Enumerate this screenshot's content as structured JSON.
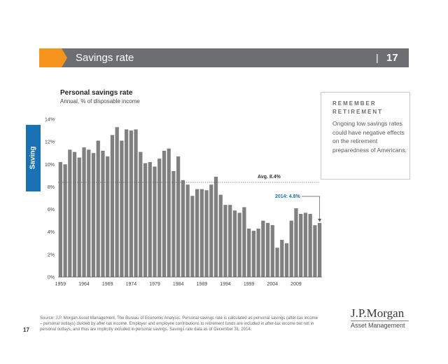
{
  "header": {
    "title": "Savings rate",
    "separator": "|",
    "page_number": "17",
    "bar_color": "#6d6e71",
    "accent_color": "#f7941d"
  },
  "side_tab": {
    "label": "Saving",
    "color": "#1a72b5"
  },
  "chart_data": {
    "type": "bar",
    "title": "Personal savings rate",
    "subtitle": "Annual, % of disposable income",
    "x": [
      1959,
      1960,
      1961,
      1962,
      1963,
      1964,
      1965,
      1966,
      1967,
      1968,
      1969,
      1970,
      1971,
      1972,
      1973,
      1974,
      1975,
      1976,
      1977,
      1978,
      1979,
      1980,
      1981,
      1982,
      1983,
      1984,
      1985,
      1986,
      1987,
      1988,
      1989,
      1990,
      1991,
      1992,
      1993,
      1994,
      1995,
      1996,
      1997,
      1998,
      1999,
      2000,
      2001,
      2002,
      2003,
      2004,
      2005,
      2006,
      2007,
      2008,
      2009,
      2010,
      2011,
      2012,
      2013,
      2014
    ],
    "values": [
      10.2,
      10.0,
      11.3,
      11.1,
      10.6,
      11.5,
      11.3,
      11.0,
      12.1,
      11.2,
      10.7,
      12.6,
      13.3,
      12.1,
      13.1,
      13.0,
      13.1,
      11.1,
      10.1,
      10.2,
      9.8,
      10.5,
      11.2,
      11.4,
      9.4,
      10.7,
      8.6,
      8.2,
      7.2,
      7.8,
      7.8,
      7.7,
      8.2,
      8.9,
      7.3,
      6.4,
      6.4,
      5.9,
      5.7,
      6.2,
      4.3,
      4.1,
      4.3,
      5.0,
      4.8,
      4.6,
      2.6,
      3.3,
      3.0,
      5.0,
      6.1,
      5.6,
      5.7,
      5.6,
      4.6,
      4.8
    ],
    "colors": {
      "bar": "#808080",
      "avg_line": "#666666",
      "annotation": "#1a72b5"
    },
    "ylim": [
      0,
      14
    ],
    "yticks": [
      0,
      2,
      4,
      6,
      8,
      10,
      12,
      14
    ],
    "ytick_labels": [
      "0%",
      "2%",
      "4%",
      "6%",
      "8%",
      "10%",
      "12%",
      "14%"
    ],
    "xtick_values": [
      1959,
      1964,
      1969,
      1974,
      1979,
      1984,
      1989,
      1994,
      1999,
      2004,
      2009
    ],
    "xtick_labels": [
      "1959",
      "1964",
      "1969",
      "1974",
      "1979",
      "1984",
      "1989",
      "1994",
      "1999",
      "2004",
      "2009"
    ],
    "average": {
      "value": 8.4,
      "label": "Avg. 8.4%"
    },
    "annotation": {
      "x": 2014,
      "value": 4.8,
      "label": "2014: 4.8%"
    },
    "grid": false
  },
  "callout": {
    "heading": "REMEMBER RETIREMENT",
    "body": "Ongoing low savings rates could have negative effects on the retirement preparedness of Americans."
  },
  "source_note": "Source: J.P. Morgan Asset Management, The Bureau of Economic Analysis. Personal savings rate is calculated as personal savings (after-tax income – personal outlays) divided by after-tax income. Employer and employee contributions to retirement funds are included in after-tax income but not in personal outlays, and thus are implicitly included in personal savings. Savings rate data as of December 31, 2014.",
  "footer": {
    "page_number": "17"
  },
  "logo": {
    "name": "J.P.Morgan",
    "subtitle": "Asset Management"
  }
}
